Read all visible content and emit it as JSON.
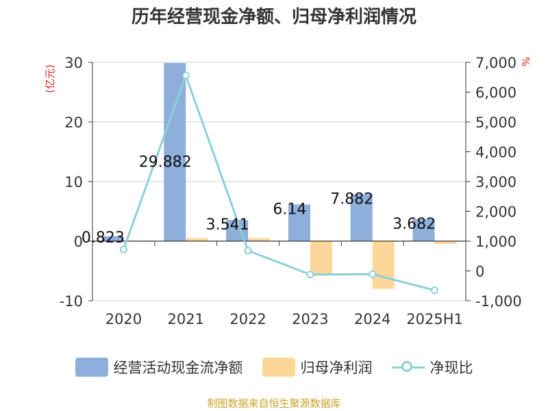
{
  "chart_data": {
    "type": "bar",
    "title": "历年经营现金净额、归母净利润情况",
    "categories": [
      "2020",
      "2021",
      "2022",
      "2023",
      "2024",
      "2025H1"
    ],
    "left_axis": {
      "unit": "(亿元)",
      "ylim": [
        -10,
        30
      ],
      "ticks": [
        "30",
        "20",
        "10",
        "0",
        "-10"
      ],
      "tick_values": [
        30,
        20,
        10,
        0,
        -10
      ]
    },
    "right_axis": {
      "unit": "%",
      "ylim": [
        -1000,
        7000
      ],
      "ticks": [
        "7,000",
        "6,000",
        "5,000",
        "4,000",
        "3,000",
        "2,000",
        "1,000",
        "0",
        "-1,000"
      ],
      "tick_values": [
        7000,
        6000,
        5000,
        4000,
        3000,
        2000,
        1000,
        0,
        -1000
      ]
    },
    "series": [
      {
        "name": "经营活动现金流净额",
        "type": "bar",
        "axis": "left",
        "color": "#8eaedb",
        "values": [
          0.823,
          29.882,
          3.541,
          6.14,
          7.882,
          3.682
        ],
        "labels": [
          "0.823",
          "29.882",
          "3.541",
          "6.14",
          "7.882",
          "3.682"
        ]
      },
      {
        "name": "归母净利润",
        "type": "bar",
        "axis": "left",
        "color": "#fdd79a",
        "values": [
          0.1,
          0.5,
          0.5,
          -5.8,
          -8.0,
          -0.5
        ]
      },
      {
        "name": "净现比",
        "type": "line",
        "axis": "right",
        "color": "#8cd0d8",
        "values": [
          720,
          6560,
          680,
          -120,
          -110,
          -650
        ]
      }
    ],
    "grid": true,
    "legend": "bottom"
  },
  "source_note": "制图数据来自恒生聚源数据库"
}
